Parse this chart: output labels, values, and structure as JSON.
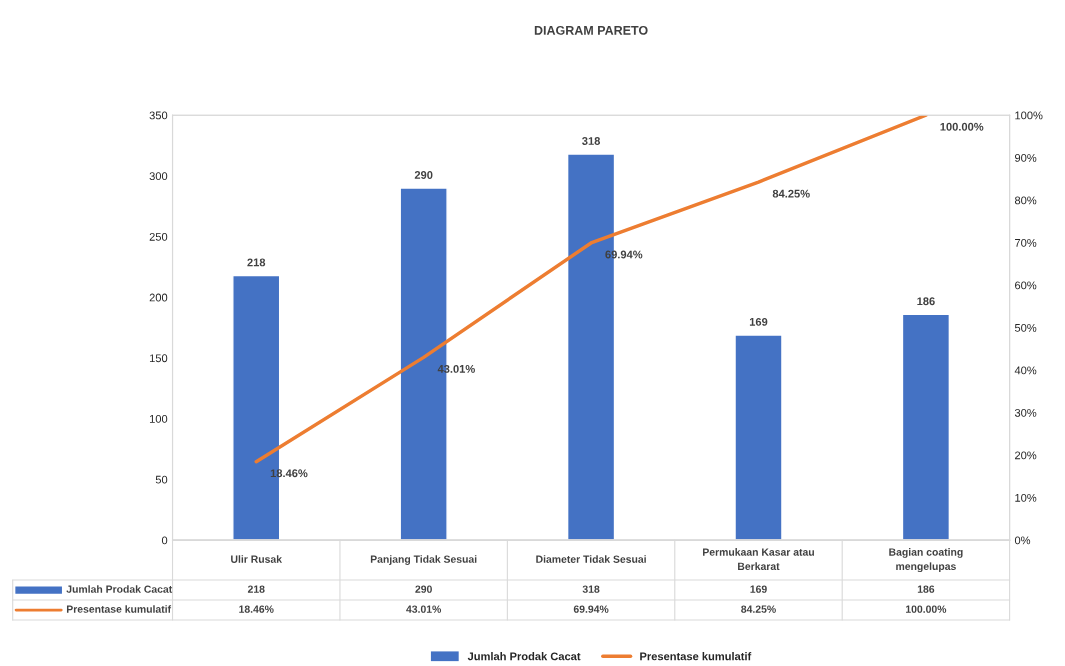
{
  "chart_data": {
    "type": "bar",
    "title": "DIAGRAM PARETO",
    "categories": [
      "Ulir Rusak",
      "Panjang Tidak Sesuai",
      "Diameter Tidak Sesuai",
      "Permukaan Kasar atau Berkarat",
      "Bagian coating mengelupas"
    ],
    "series": [
      {
        "name": "Jumlah Prodak Cacat",
        "color": "#4472c4",
        "values": [
          218,
          290,
          318,
          169,
          186
        ],
        "value_labels": [
          "218",
          "290",
          "318",
          "169",
          "186"
        ]
      },
      {
        "name": "Presentase kumulatif",
        "type": "line",
        "axis": "y2",
        "color": "#ed7d31",
        "values": [
          18.46,
          43.01,
          69.94,
          84.25,
          100.0
        ],
        "value_labels": [
          "18.46%",
          "43.01%",
          "69.94%",
          "84.25%",
          "100.00%"
        ]
      }
    ],
    "ylim": [
      0,
      350
    ],
    "yticks": [
      0,
      50,
      100,
      150,
      200,
      250,
      300,
      350
    ],
    "y2lim": [
      0,
      100
    ],
    "y2ticks": [
      {
        "value": 0,
        "label": "0%"
      },
      {
        "value": 10,
        "label": "10%"
      },
      {
        "value": 20,
        "label": "20%"
      },
      {
        "value": 30,
        "label": "30%"
      },
      {
        "value": 40,
        "label": "40%"
      },
      {
        "value": 50,
        "label": "50%"
      },
      {
        "value": 60,
        "label": "60%"
      },
      {
        "value": 70,
        "label": "70%"
      },
      {
        "value": 80,
        "label": "80%"
      },
      {
        "value": 90,
        "label": "90%"
      },
      {
        "value": 100,
        "label": "100%"
      }
    ],
    "grid": false,
    "legend": "bottom",
    "marker": "none",
    "line_style": "solid"
  }
}
